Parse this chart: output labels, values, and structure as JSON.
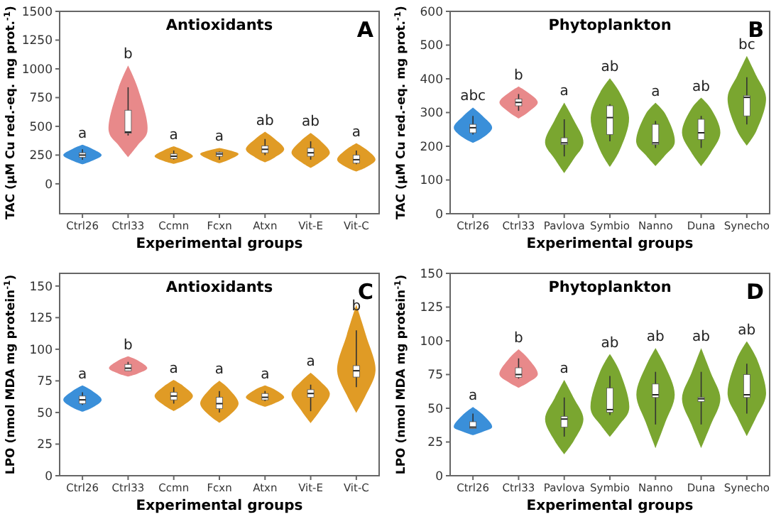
{
  "chart_data": [
    {
      "type": "box",
      "title": "Antioxidants",
      "xlabel": "Experimental groups",
      "ylabel": "TAC (µM Cu red.-eq. mg prot.$^{-1}$)",
      "categories": [
        "Ctrl26",
        "Ctrl33",
        "Ccmn",
        "Fcxn",
        "Atxn",
        "Vit-E",
        "Vit-C"
      ],
      "ylim": [
        -260,
        1500
      ],
      "yticks": [
        0,
        250,
        500,
        750,
        1000,
        1250,
        1500
      ],
      "boxes": [
        {
          "low": 210,
          "q1": 230,
          "median": 250,
          "q3": 270,
          "high": 300
        },
        {
          "low": 420,
          "q1": 440,
          "median": 450,
          "q3": 640,
          "high": 840
        },
        {
          "low": 210,
          "q1": 220,
          "median": 240,
          "q3": 260,
          "high": 290
        },
        {
          "low": 210,
          "q1": 240,
          "median": 260,
          "q3": 275,
          "high": 280
        },
        {
          "low": 250,
          "q1": 270,
          "median": 300,
          "q3": 330,
          "high": 390
        },
        {
          "low": 210,
          "q1": 240,
          "median": 270,
          "q3": 310,
          "high": 370
        },
        {
          "low": 170,
          "q1": 180,
          "median": 210,
          "q3": 250,
          "high": 290
        }
      ],
      "annotations": [
        "A",
        "a",
        "b",
        "a",
        "a",
        "ab",
        "ab",
        "a"
      ]
    },
    {
      "type": "box",
      "title": "Phytoplankton",
      "xlabel": "Experimental groups",
      "ylabel": "TAC (µM Cu red.-eq. mg prot.$^{-1}$)",
      "categories": [
        "Ctrl26",
        "Ctrl33",
        "Pavlova",
        "Symbio",
        "Nanno",
        "Duna",
        "Synecho"
      ],
      "ylim": [
        0,
        600
      ],
      "yticks": [
        0,
        100,
        200,
        300,
        400,
        500,
        600
      ],
      "boxes": [
        {
          "low": 235,
          "q1": 240,
          "median": 255,
          "q3": 265,
          "high": 290
        },
        {
          "low": 305,
          "q1": 320,
          "median": 330,
          "q3": 340,
          "high": 355
        },
        {
          "low": 170,
          "q1": 205,
          "median": 210,
          "q3": 225,
          "high": 280
        },
        {
          "low": 215,
          "q1": 235,
          "median": 285,
          "q3": 320,
          "high": 325
        },
        {
          "low": 195,
          "q1": 205,
          "median": 210,
          "q3": 265,
          "high": 275
        },
        {
          "low": 195,
          "q1": 220,
          "median": 240,
          "q3": 280,
          "high": 290
        },
        {
          "low": 265,
          "q1": 290,
          "median": 345,
          "q3": 350,
          "high": 405
        }
      ],
      "annotations": [
        "B",
        "abc",
        "b",
        "a",
        "ab",
        "a",
        "ab",
        "bc"
      ]
    },
    {
      "type": "box",
      "title": "Antioxidants",
      "xlabel": "Experimental groups",
      "ylabel": "LPO (nmol MDA mg protein$^{-1}$)",
      "categories": [
        "Ctrl26",
        "Ctrl33",
        "Ccmn",
        "Fcxn",
        "Atxn",
        "Vit-E",
        "Vit-C"
      ],
      "ylim": [
        0,
        160
      ],
      "yticks": [
        0,
        25,
        50,
        75,
        100,
        125,
        150
      ],
      "boxes": [
        {
          "low": 56,
          "q1": 57,
          "median": 60,
          "q3": 63,
          "high": 66
        },
        {
          "low": 83,
          "q1": 83,
          "median": 85,
          "q3": 88,
          "high": 90
        },
        {
          "low": 57,
          "q1": 60,
          "median": 63,
          "q3": 66,
          "high": 70
        },
        {
          "low": 50,
          "q1": 53,
          "median": 57,
          "q3": 62,
          "high": 67
        },
        {
          "low": 59,
          "q1": 60,
          "median": 62,
          "q3": 65,
          "high": 67
        },
        {
          "low": 51,
          "q1": 62,
          "median": 65,
          "q3": 68,
          "high": 72
        },
        {
          "low": 70,
          "q1": 78,
          "median": 83,
          "q3": 87,
          "high": 115
        }
      ],
      "annotations": [
        "C",
        "a",
        "b",
        "a",
        "a",
        "a",
        "a",
        "b"
      ]
    },
    {
      "type": "box",
      "title": "Phytoplankton",
      "xlabel": "Experimental groups",
      "ylabel": "LPO (nmol MDA mg protein$^{-1}$)",
      "categories": [
        "Ctrl26",
        "Ctrl33",
        "Pavlova",
        "Symbio",
        "Nanno",
        "Duna",
        "Synecho"
      ],
      "ylim": [
        0,
        150
      ],
      "yticks": [
        0,
        25,
        50,
        75,
        100,
        125,
        150
      ],
      "boxes": [
        {
          "low": 35,
          "q1": 35,
          "median": 36,
          "q3": 40,
          "high": 46
        },
        {
          "low": 72,
          "q1": 73,
          "median": 75,
          "q3": 80,
          "high": 87
        },
        {
          "low": 29,
          "q1": 36,
          "median": 42,
          "q3": 44,
          "high": 58
        },
        {
          "low": 45,
          "q1": 47,
          "median": 49,
          "q3": 65,
          "high": 74
        },
        {
          "low": 38,
          "q1": 58,
          "median": 60,
          "q3": 68,
          "high": 77
        },
        {
          "low": 38,
          "q1": 55,
          "median": 57,
          "q3": 58,
          "high": 77
        },
        {
          "low": 46,
          "q1": 58,
          "median": 60,
          "q3": 75,
          "high": 83
        }
      ],
      "annotations": [
        "D",
        "a",
        "b",
        "a",
        "ab",
        "ab",
        "ab",
        "ab"
      ]
    }
  ]
}
